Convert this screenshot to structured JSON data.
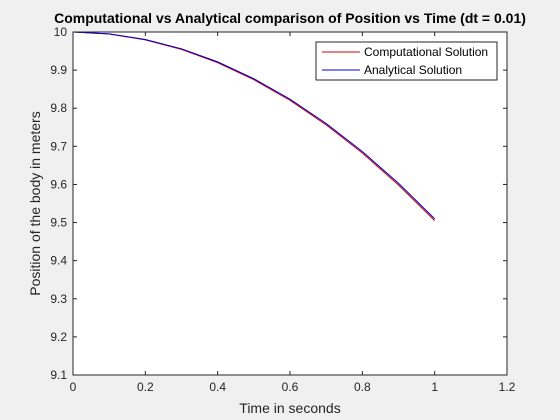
{
  "chart_data": {
    "type": "line",
    "title": "Computational vs Analytical comparison of Position vs Time (dt = 0.01)",
    "xlabel": "Time in seconds",
    "ylabel": "Position of the body in meters",
    "xlim": [
      0,
      1.2
    ],
    "ylim": [
      9.1,
      10
    ],
    "xticks": [
      "0",
      "0.2",
      "0.4",
      "0.6",
      "0.8",
      "1",
      "1.2"
    ],
    "yticks": [
      "9.1",
      "9.2",
      "9.3",
      "9.4",
      "9.5",
      "9.6",
      "9.7",
      "9.8",
      "9.9",
      "10"
    ],
    "grid": false,
    "legend_position": "top-right",
    "series": [
      {
        "name": "Computational Solution",
        "color": "#cc0000",
        "x": [
          0,
          0.1,
          0.2,
          0.3,
          0.4,
          0.5,
          0.6,
          0.7,
          0.8,
          0.9,
          1.0
        ],
        "y": [
          10,
          9.9946,
          9.9794,
          9.9544,
          9.9196,
          9.875,
          9.8206,
          9.7564,
          9.6824,
          9.5986,
          9.505
        ]
      },
      {
        "name": "Analytical Solution",
        "color": "#0000cc",
        "x": [
          0,
          0.1,
          0.2,
          0.3,
          0.4,
          0.5,
          0.6,
          0.7,
          0.8,
          0.9,
          1.0
        ],
        "y": [
          10,
          9.9951,
          9.9804,
          9.9559,
          9.9216,
          9.8775,
          9.8236,
          9.7599,
          9.6864,
          9.6031,
          9.51
        ]
      }
    ]
  }
}
